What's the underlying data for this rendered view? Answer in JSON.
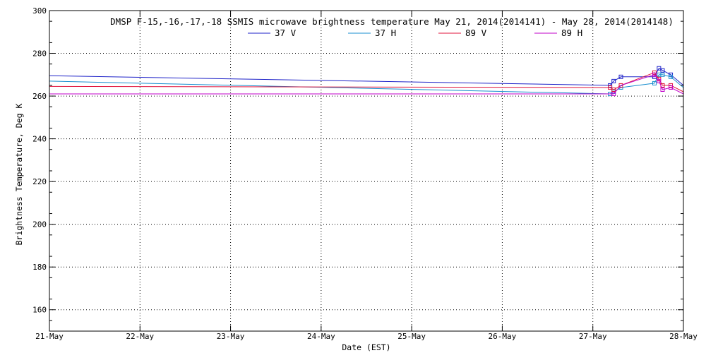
{
  "colors": {
    "background": "#ffffff",
    "axis": "#000000",
    "grid": "#000000",
    "series_37v": "#1e22c8",
    "series_37h": "#1a8fd0",
    "series_89v": "#e0143c",
    "series_89h": "#c000c8"
  },
  "chart_data": {
    "type": "line",
    "title": "DMSP F-15,-16,-17,-18 SSMIS microwave brightness temperature May 21, 2014(2014141) - May 28, 2014(2014148)",
    "xlabel": "Date (EST)",
    "ylabel": "Brightness Temperature, Deg K",
    "x_unit": "days since 21-May-2014 00:00",
    "xlim": [
      0,
      7
    ],
    "ylim": [
      150,
      300
    ],
    "x_ticks": [
      {
        "value": 0,
        "label": "21-May"
      },
      {
        "value": 1,
        "label": "22-May"
      },
      {
        "value": 2,
        "label": "23-May"
      },
      {
        "value": 3,
        "label": "24-May"
      },
      {
        "value": 4,
        "label": "25-May"
      },
      {
        "value": 5,
        "label": "26-May"
      },
      {
        "value": 6,
        "label": "27-May"
      },
      {
        "value": 7,
        "label": "28-May"
      }
    ],
    "y_ticks": [
      160,
      180,
      200,
      220,
      240,
      260,
      280,
      300
    ],
    "grid": true,
    "legend_position": "top",
    "series": [
      {
        "name": "37 V",
        "color_key": "series_37v",
        "points": [
          [
            0.0,
            269.5
          ],
          [
            6.19,
            265.0
          ],
          [
            6.23,
            267.0
          ],
          [
            6.31,
            269.0
          ],
          [
            6.68,
            269.0
          ],
          [
            6.73,
            273.0
          ],
          [
            6.77,
            272.0
          ],
          [
            6.86,
            270.0
          ],
          [
            7.0,
            265.0
          ]
        ],
        "markers": [
          [
            6.19,
            265.0
          ],
          [
            6.23,
            267.0
          ],
          [
            6.31,
            269.0
          ],
          [
            6.68,
            269.0
          ],
          [
            6.73,
            273.0
          ],
          [
            6.77,
            272.0
          ],
          [
            6.86,
            270.0
          ]
        ]
      },
      {
        "name": "37 H",
        "color_key": "series_37h",
        "points": [
          [
            0.0,
            267.0
          ],
          [
            6.19,
            261.0
          ],
          [
            6.23,
            262.0
          ],
          [
            6.31,
            264.0
          ],
          [
            6.68,
            266.0
          ],
          [
            6.73,
            270.0
          ],
          [
            6.77,
            270.0
          ],
          [
            6.86,
            269.0
          ],
          [
            7.0,
            264.0
          ]
        ],
        "markers": [
          [
            6.19,
            261.0
          ],
          [
            6.23,
            262.0
          ],
          [
            6.31,
            264.0
          ],
          [
            6.68,
            266.0
          ],
          [
            6.73,
            270.0
          ],
          [
            6.77,
            270.0
          ],
          [
            6.86,
            269.0
          ]
        ]
      },
      {
        "name": "89 V",
        "color_key": "series_89v",
        "points": [
          [
            0.0,
            264.5
          ],
          [
            6.19,
            264.0
          ],
          [
            6.23,
            263.0
          ],
          [
            6.31,
            265.0
          ],
          [
            6.68,
            271.0
          ],
          [
            6.73,
            268.0
          ],
          [
            6.77,
            265.0
          ],
          [
            6.86,
            265.0
          ],
          [
            7.0,
            262.0
          ]
        ],
        "markers": [
          [
            6.19,
            264.0
          ],
          [
            6.23,
            263.0
          ],
          [
            6.31,
            265.0
          ],
          [
            6.68,
            271.0
          ],
          [
            6.73,
            268.0
          ],
          [
            6.77,
            265.0
          ],
          [
            6.86,
            265.0
          ]
        ]
      },
      {
        "name": "89 H",
        "color_key": "series_89h",
        "points": [
          [
            0.0,
            261.0
          ],
          [
            6.19,
            261.0
          ],
          [
            6.23,
            261.0
          ],
          [
            6.31,
            265.0
          ],
          [
            6.68,
            270.0
          ],
          [
            6.73,
            267.0
          ],
          [
            6.77,
            263.0
          ],
          [
            6.86,
            264.0
          ],
          [
            7.0,
            261.0
          ]
        ],
        "markers": [
          [
            6.23,
            261.0
          ],
          [
            6.68,
            270.0
          ],
          [
            6.73,
            267.0
          ],
          [
            6.77,
            263.0
          ],
          [
            6.86,
            264.0
          ]
        ]
      }
    ]
  }
}
